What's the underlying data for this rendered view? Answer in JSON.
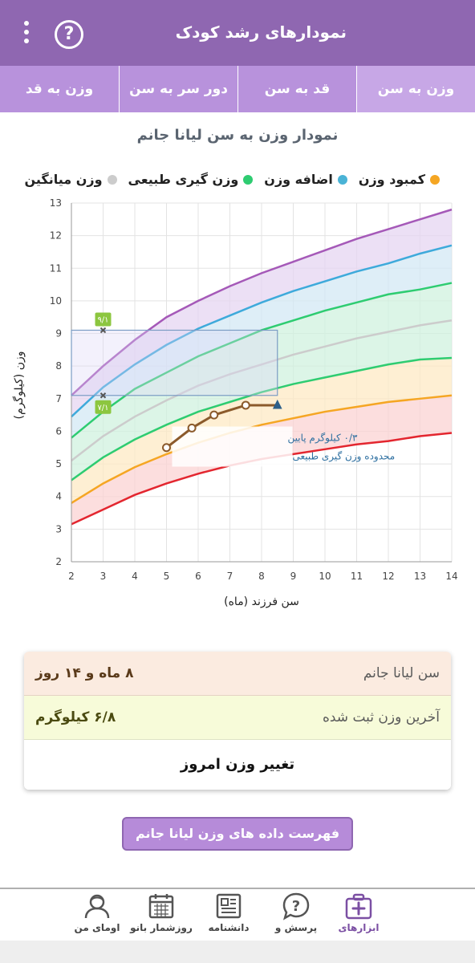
{
  "appbar": {
    "title": "نمودارهای رشد کودک",
    "help_icon": "?"
  },
  "tabs": [
    {
      "label": "وزن به سن",
      "active": true
    },
    {
      "label": "قد به سن",
      "active": false
    },
    {
      "label": "دور سر به سن",
      "active": false
    },
    {
      "label": "وزن به قد",
      "active": false
    }
  ],
  "chart_title": "نمودار وزن به سن لیانا جانم",
  "legend": [
    {
      "label": "کمبود وزن",
      "color": "#f5a623"
    },
    {
      "label": "اضافه وزن",
      "color": "#4ab3d6"
    },
    {
      "label": "وزن گیری طبیعی",
      "color": "#2ecc71"
    },
    {
      "label": "وزن میانگین",
      "color": "#cccccc"
    }
  ],
  "chart_data": {
    "type": "line",
    "xlabel": "سن فرزند (ماه)",
    "ylabel": "وزن (کیلوگرم)",
    "xlim": [
      2,
      14
    ],
    "ylim": [
      2,
      13
    ],
    "x_ticks": [
      2,
      3,
      4,
      5,
      6,
      7,
      8,
      9,
      10,
      11,
      12,
      13,
      14
    ],
    "y_ticks": [
      2,
      3,
      4,
      5,
      6,
      7,
      8,
      9,
      10,
      11,
      12,
      13
    ],
    "grid": true,
    "x": [
      2,
      3,
      4,
      5,
      6,
      7,
      8,
      9,
      10,
      11,
      12,
      13,
      14
    ],
    "curves": [
      {
        "color": "#a559b8",
        "values": [
          7.1,
          8.0,
          8.8,
          9.5,
          10.0,
          10.45,
          10.85,
          11.2,
          11.55,
          11.9,
          12.2,
          12.5,
          12.8
        ]
      },
      {
        "color": "#3eaadb",
        "values": [
          6.45,
          7.35,
          8.05,
          8.65,
          9.15,
          9.55,
          9.95,
          10.3,
          10.6,
          10.9,
          11.15,
          11.45,
          11.7
        ]
      },
      {
        "color": "#2ecc71",
        "values": [
          5.8,
          6.6,
          7.3,
          7.8,
          8.3,
          8.7,
          9.1,
          9.4,
          9.7,
          9.95,
          10.2,
          10.35,
          10.55
        ]
      },
      {
        "color": "#cccccc",
        "values": [
          5.1,
          5.85,
          6.45,
          6.95,
          7.4,
          7.75,
          8.05,
          8.35,
          8.6,
          8.85,
          9.05,
          9.25,
          9.4
        ]
      },
      {
        "color": "#2ecc71",
        "values": [
          4.5,
          5.2,
          5.75,
          6.2,
          6.6,
          6.9,
          7.2,
          7.45,
          7.65,
          7.85,
          8.05,
          8.2,
          8.25
        ]
      },
      {
        "color": "#f5a623",
        "values": [
          3.8,
          4.4,
          4.9,
          5.3,
          5.65,
          5.95,
          6.2,
          6.4,
          6.6,
          6.75,
          6.9,
          7.0,
          7.1
        ]
      },
      {
        "color": "#e3262f",
        "values": [
          3.15,
          3.6,
          4.05,
          4.4,
          4.7,
          4.95,
          5.15,
          5.3,
          5.45,
          5.6,
          5.7,
          5.85,
          5.95
        ]
      }
    ],
    "bands": [
      {
        "color": "#e6d6f2"
      },
      {
        "color": "#d3e8f4"
      },
      {
        "color": "#d0f2df"
      },
      {
        "color": "#d0f2df"
      },
      {
        "color": "#fde9c4"
      },
      {
        "color": "#fbd3d3"
      }
    ],
    "series": [
      {
        "color": "#8b5a2b",
        "x": [
          5.0,
          5.8,
          6.5,
          7.5,
          8.5
        ],
        "values": [
          5.5,
          6.1,
          6.5,
          6.8,
          6.8
        ]
      }
    ],
    "reference_box": {
      "x": [
        2,
        8.5
      ],
      "y": [
        7.1,
        9.1
      ]
    },
    "markers": [
      {
        "x": 3,
        "y": 9.1,
        "label": "۹/۱"
      },
      {
        "x": 3,
        "y": 7.1,
        "label": "۷/۱"
      }
    ],
    "annotation": {
      "line1": "۰/۳ کیلوگرم پایین",
      "line2": "محدوده وزن گیری طبیعی",
      "x": 7.0,
      "y": 5.9
    }
  },
  "info": {
    "age_label": "سن لیانا جانم",
    "age_value": "۸ ماه و ۱۴ روز",
    "weight_label": "آخرین وزن ثبت شده",
    "weight_value": "۶/۸ کیلوگرم",
    "change_label": "تغییر وزن امروز"
  },
  "list_button": "فهرست داده های وزن لیانا جانم",
  "bottom_nav": [
    {
      "label": "ابزارهای",
      "icon": "medical-kit-icon",
      "active": true
    },
    {
      "label": "پرسش و",
      "icon": "question-bubble-icon",
      "active": false
    },
    {
      "label": "دانشنامه",
      "icon": "newspaper-icon",
      "active": false
    },
    {
      "label": "روزشمار بانو",
      "icon": "calendar-icon",
      "active": false
    },
    {
      "label": "اومای من",
      "icon": "user-avatar-icon",
      "active": false
    }
  ]
}
